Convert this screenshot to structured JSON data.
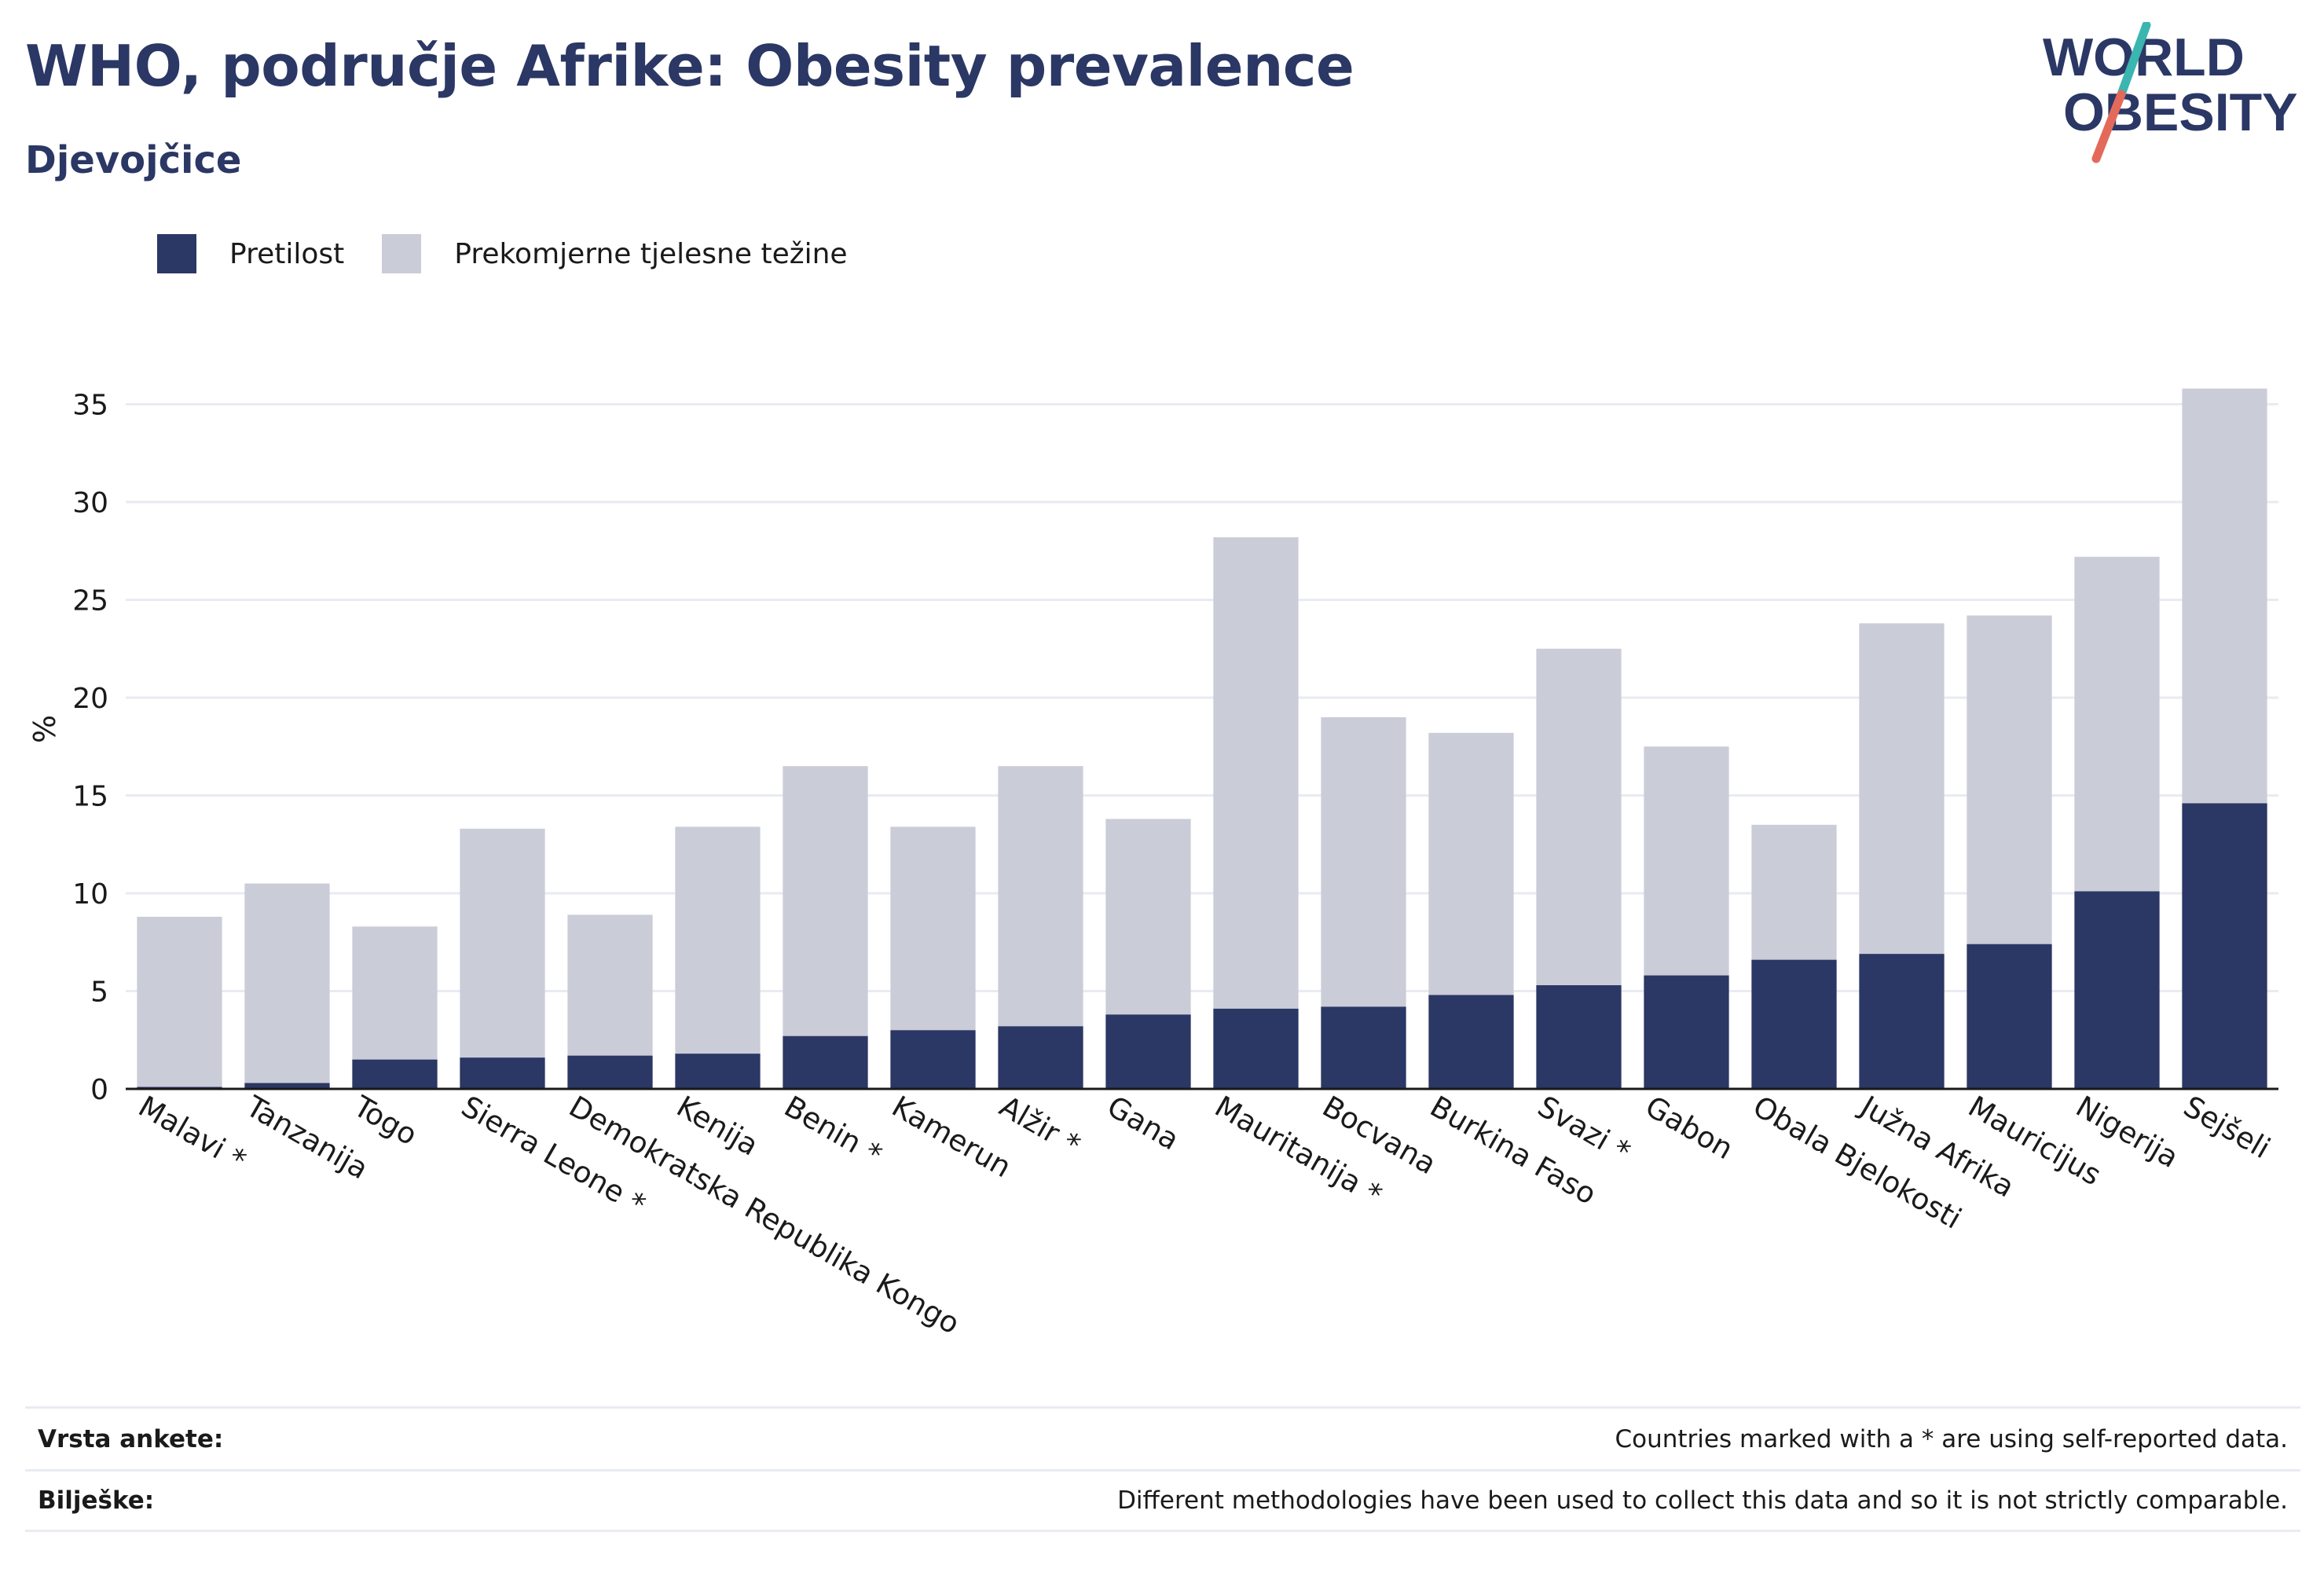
{
  "title": "WHO, područje Afrike: Obesity prevalence",
  "subtitle": "Djevojčice",
  "logo": {
    "line1": "WORLD",
    "line2": "OBESITY"
  },
  "colors": {
    "obesity": "#2b3764",
    "overweight": "#caccd8",
    "title": "#2b3764",
    "grid": "#e8ebf2",
    "logo_teal": "#3ab5b0",
    "logo_coral": "#e36a5a"
  },
  "legend": [
    {
      "label": "Pretilost",
      "color": "#2b3764"
    },
    {
      "label": "Prekomjerne tjelesne težine",
      "color": "#caccd8"
    }
  ],
  "chart_data": {
    "type": "bar",
    "stacked": false,
    "ylabel": "%",
    "xlabel": "",
    "ylim": [
      0,
      37
    ],
    "yticks": [
      0,
      5,
      10,
      15,
      20,
      25,
      30,
      35
    ],
    "grid": true,
    "legend_position": "top-left",
    "categories": [
      "Malavi *",
      "Tanzanija",
      "Togo",
      "Sierra Leone *",
      "Demokratska Republika Kongo",
      "Kenija",
      "Benin *",
      "Kamerun",
      "Alžir *",
      "Gana",
      "Mauritanija *",
      "Bocvana",
      "Burkina Faso",
      "Svazi *",
      "Gabon",
      "Obala Bjelokosti",
      "Južna Afrika",
      "Mauricijus",
      "Nigerija",
      "Sejšeli"
    ],
    "series": [
      {
        "name": "Prekomjerne tjelesne težine",
        "values": [
          8.8,
          10.5,
          8.3,
          13.3,
          8.9,
          13.4,
          16.5,
          13.4,
          16.5,
          13.8,
          28.2,
          19.0,
          18.2,
          22.5,
          17.5,
          13.5,
          23.8,
          24.2,
          27.2,
          35.8
        ]
      },
      {
        "name": "Pretilost",
        "values": [
          0.1,
          0.3,
          1.5,
          1.6,
          1.7,
          1.8,
          2.7,
          3.0,
          3.2,
          3.8,
          4.1,
          4.2,
          4.8,
          5.3,
          5.8,
          6.6,
          6.9,
          7.4,
          10.1,
          14.6
        ]
      }
    ]
  },
  "footer": [
    {
      "key": "Vrsta ankete:",
      "value": "Countries marked with a * are using self-reported data."
    },
    {
      "key": "Bilješke:",
      "value": "Different methodologies have been used to collect this data and so it is not strictly comparable."
    }
  ]
}
